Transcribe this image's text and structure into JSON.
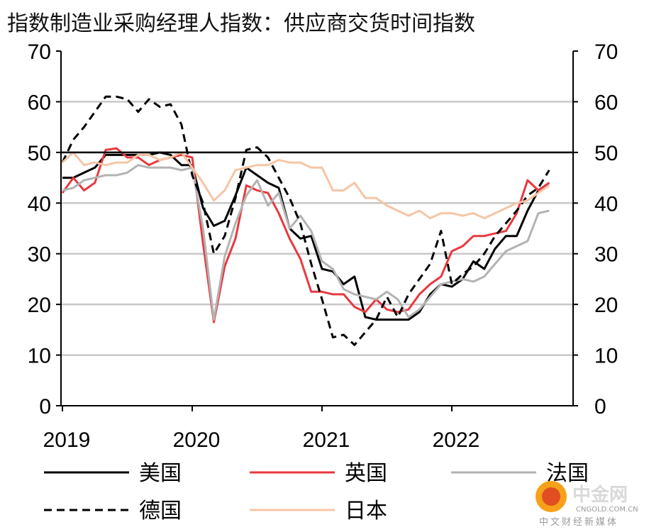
{
  "title": "指数制造业采购经理人指数：供应商交货时间指数",
  "chart_data": {
    "type": "line",
    "title": "指数制造业采购经理人指数：供应商交货时间指数",
    "ylim": [
      0,
      70
    ],
    "y_ticks": [
      "0",
      "10",
      "20",
      "30",
      "40",
      "50",
      "60",
      "70"
    ],
    "y_ticks_right": [
      "0",
      "10",
      "20",
      "30",
      "40",
      "50",
      "60",
      "70"
    ],
    "x_ticks": [
      "2019",
      "2020",
      "2021",
      "2022"
    ],
    "reference_line": 50,
    "grid": true,
    "legend_position": "bottom",
    "x": [
      "2019-01",
      "2019-02",
      "2019-03",
      "2019-04",
      "2019-05",
      "2019-06",
      "2019-07",
      "2019-08",
      "2019-09",
      "2019-10",
      "2019-11",
      "2019-12",
      "2020-01",
      "2020-02",
      "2020-03",
      "2020-04",
      "2020-05",
      "2020-06",
      "2020-07",
      "2020-08",
      "2020-09",
      "2020-10",
      "2020-11",
      "2020-12",
      "2021-01",
      "2021-02",
      "2021-03",
      "2021-04",
      "2021-05",
      "2021-06",
      "2021-07",
      "2021-08",
      "2021-09",
      "2021-10",
      "2021-11",
      "2021-12",
      "2022-01",
      "2022-02",
      "2022-03",
      "2022-04",
      "2022-05",
      "2022-06",
      "2022-07",
      "2022-08",
      "2022-09",
      "2022-10"
    ],
    "series": [
      {
        "name": "美国",
        "color": "#000000",
        "dash": "solid",
        "values": [
          45,
          45,
          46,
          47,
          49.5,
          49.5,
          49.5,
          49.5,
          49.5,
          50,
          49.5,
          47.5,
          47.5,
          39,
          35.5,
          36.5,
          41.5,
          47,
          45.5,
          44,
          43,
          35,
          33,
          33.5,
          27,
          26.5,
          24,
          25.5,
          17.5,
          17,
          17,
          17,
          17,
          18.5,
          22,
          24,
          23.5,
          25,
          28.5,
          27,
          31,
          33.5,
          33.5,
          38.5,
          42.5,
          44
        ]
      },
      {
        "name": "英国",
        "color": "#e8393e",
        "dash": "solid",
        "values": [
          42,
          45,
          42.5,
          44,
          50.5,
          50.8,
          49,
          49,
          47.5,
          48.5,
          49,
          49.5,
          49,
          32,
          16.5,
          27.5,
          33,
          43.5,
          42.5,
          42,
          38,
          33,
          29,
          22.5,
          22.5,
          22,
          22,
          19.5,
          18.5,
          21,
          19,
          18.5,
          19,
          22,
          24,
          25.5,
          30.5,
          31.5,
          33.5,
          33.5,
          34,
          34.5,
          38,
          44.5,
          42.5,
          44
        ]
      },
      {
        "name": "法国",
        "color": "#b3b3b3",
        "dash": "solid",
        "values": [
          42.5,
          43,
          44.5,
          45,
          45.5,
          45.5,
          46,
          47.5,
          47,
          47,
          47,
          46.5,
          47,
          35,
          17,
          29.5,
          36,
          41.5,
          44.5,
          39.5,
          42,
          35,
          37.5,
          34.5,
          28.5,
          27,
          23,
          22,
          21.5,
          21,
          22.5,
          21,
          17.5,
          19,
          21.5,
          24,
          24.5,
          25,
          24.5,
          25.5,
          28,
          30.5,
          31.5,
          32.5,
          38,
          38.5
        ]
      },
      {
        "name": "德国",
        "color": "#000000",
        "dash": "dashed",
        "values": [
          48,
          52.5,
          55,
          58,
          61,
          61,
          60.5,
          58,
          60.5,
          59,
          59.5,
          55.5,
          45.5,
          40,
          30,
          33.5,
          41,
          50.5,
          51,
          49,
          45,
          41,
          36,
          28,
          21,
          13.5,
          14,
          12,
          14.5,
          17,
          21.5,
          17.5,
          22,
          25,
          28,
          34.5,
          24,
          26,
          27.5,
          30,
          33.5,
          36,
          38.5,
          41.5,
          43,
          46.5
        ]
      },
      {
        "name": "日本",
        "color": "#f6c5a5",
        "dash": "solid",
        "values": [
          48,
          50,
          47.5,
          48,
          47.5,
          48,
          48,
          49.5,
          49.5,
          48.5,
          49,
          50,
          47,
          44,
          40.5,
          42.5,
          46.5,
          47,
          47.5,
          47.5,
          48.5,
          48,
          48,
          47,
          47,
          42.5,
          42.5,
          44,
          41,
          41,
          39.5,
          38.5,
          37.5,
          38.5,
          37,
          38,
          38,
          37.5,
          38,
          37,
          38,
          39,
          40,
          40.5,
          42,
          43.5
        ]
      }
    ]
  },
  "watermark": {
    "brand": "中金网",
    "url": "CNGOLD.COM.CN",
    "tagline": "中文财经新媒体"
  }
}
